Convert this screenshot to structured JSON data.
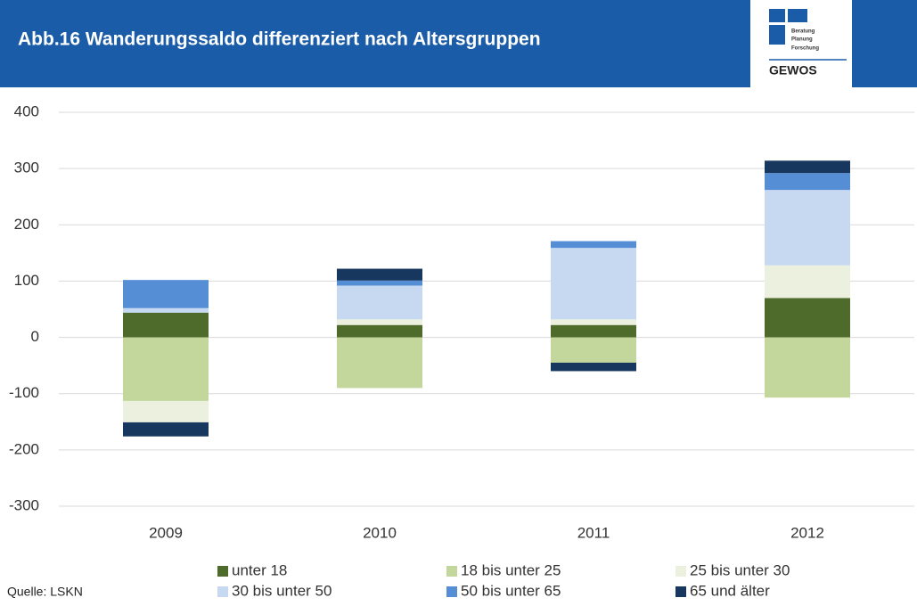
{
  "header": {
    "title": "Abb.16  Wanderungssaldo differenziert nach Altersgruppen",
    "logo": {
      "name": "GEWOS",
      "lines": [
        "Beratung",
        "Planung",
        "Forschung"
      ]
    }
  },
  "source": "Quelle: LSKN",
  "chart_data": {
    "type": "stacked-bar",
    "categories": [
      "2009",
      "2010",
      "2011",
      "2012"
    ],
    "series": [
      {
        "name": "unter 18",
        "color": "#4f6b2c",
        "values": [
          44,
          22,
          22,
          70
        ]
      },
      {
        "name": "18 bis unter 25",
        "color": "#c3d69b",
        "values": [
          -113,
          -90,
          -45,
          -107
        ]
      },
      {
        "name": "25 bis unter 30",
        "color": "#ebf1de",
        "values": [
          -38,
          10,
          10,
          58
        ]
      },
      {
        "name": "30 bis unter 50",
        "color": "#c6d9f1",
        "values": [
          8,
          60,
          127,
          134
        ]
      },
      {
        "name": "50 bis unter 65",
        "color": "#558ed5",
        "values": [
          50,
          9,
          12,
          30
        ]
      },
      {
        "name": "65 und älter",
        "color": "#17375e",
        "values": [
          -25,
          21,
          -15,
          22
        ]
      }
    ],
    "ylim": [
      -300,
      400
    ],
    "yticks": [
      -300,
      -200,
      -100,
      0,
      100,
      200,
      300,
      400
    ],
    "grid": true
  }
}
